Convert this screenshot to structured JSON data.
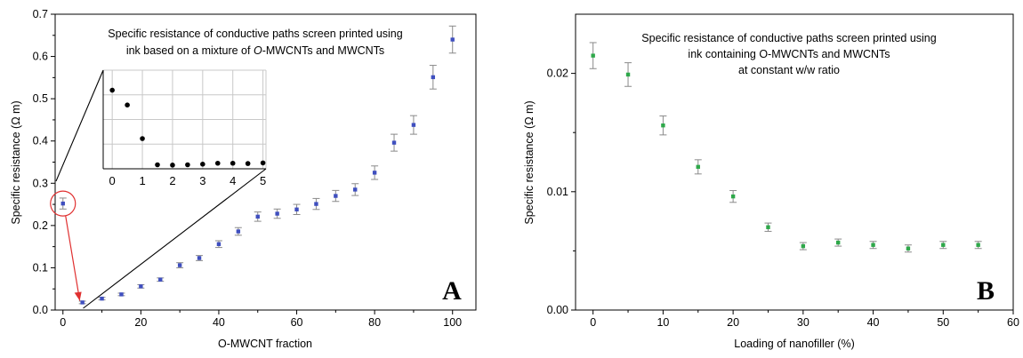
{
  "chart_data": [
    {
      "panel": "A",
      "type": "scatter",
      "title_line1": "Specific resistance of conductive paths screen printed using",
      "title_line2_prefix": "ink based on a mixture of ",
      "title_line2_italic": "O",
      "title_line2_suffix": "-MWCNTs and MWCNTs",
      "xlabel": "O-MWCNT fraction",
      "ylabel": "Specific resistance (Ω m)",
      "xlim": [
        -2,
        106
      ],
      "ylim": [
        0,
        0.7
      ],
      "xticks": [
        0,
        20,
        40,
        60,
        80,
        100
      ],
      "xtick_labels": [
        "0",
        "20",
        "40",
        "60",
        "80",
        "100"
      ],
      "yticks": [
        0.0,
        0.1,
        0.2,
        0.3,
        0.4,
        0.5,
        0.6,
        0.7
      ],
      "ytick_labels": [
        "0.0",
        "0.1",
        "0.2",
        "0.3",
        "0.4",
        "0.5",
        "0.6",
        "0.7"
      ],
      "series_color": "#3f4fbf",
      "points": [
        {
          "x": 0,
          "y": 0.252,
          "err": 0.013
        },
        {
          "x": 5,
          "y": 0.018,
          "err": 0.003
        },
        {
          "x": 10,
          "y": 0.027,
          "err": 0.003
        },
        {
          "x": 15,
          "y": 0.037,
          "err": 0.003
        },
        {
          "x": 20,
          "y": 0.056,
          "err": 0.004
        },
        {
          "x": 25,
          "y": 0.072,
          "err": 0.004
        },
        {
          "x": 30,
          "y": 0.106,
          "err": 0.006
        },
        {
          "x": 35,
          "y": 0.123,
          "err": 0.006
        },
        {
          "x": 40,
          "y": 0.156,
          "err": 0.008
        },
        {
          "x": 45,
          "y": 0.186,
          "err": 0.009
        },
        {
          "x": 50,
          "y": 0.221,
          "err": 0.011
        },
        {
          "x": 55,
          "y": 0.228,
          "err": 0.011
        },
        {
          "x": 60,
          "y": 0.238,
          "err": 0.012
        },
        {
          "x": 65,
          "y": 0.251,
          "err": 0.013
        },
        {
          "x": 70,
          "y": 0.27,
          "err": 0.013
        },
        {
          "x": 75,
          "y": 0.285,
          "err": 0.014
        },
        {
          "x": 80,
          "y": 0.325,
          "err": 0.016
        },
        {
          "x": 85,
          "y": 0.396,
          "err": 0.02
        },
        {
          "x": 90,
          "y": 0.438,
          "err": 0.022
        },
        {
          "x": 95,
          "y": 0.551,
          "err": 0.028
        },
        {
          "x": 100,
          "y": 0.64,
          "err": 0.032
        }
      ],
      "highlight": {
        "x": 0,
        "y": 0.252,
        "color": "#e03030"
      },
      "inset": {
        "xlim": [
          -0.3,
          5.1
        ],
        "ylim": [
          0,
          0.32
        ],
        "xticks": [
          0,
          1,
          2,
          3,
          4,
          5
        ],
        "xtick_labels": [
          "0",
          "1",
          "2",
          "3",
          "4",
          "5"
        ],
        "grid": true,
        "points": [
          {
            "x": 0,
            "y": 0.255
          },
          {
            "x": 0.5,
            "y": 0.207
          },
          {
            "x": 1,
            "y": 0.098
          },
          {
            "x": 1.5,
            "y": 0.013
          },
          {
            "x": 2,
            "y": 0.012
          },
          {
            "x": 2.5,
            "y": 0.013
          },
          {
            "x": 3,
            "y": 0.015
          },
          {
            "x": 3.5,
            "y": 0.018
          },
          {
            "x": 4,
            "y": 0.018
          },
          {
            "x": 4.5,
            "y": 0.017
          },
          {
            "x": 5,
            "y": 0.019
          }
        ]
      },
      "panel_label": "A"
    },
    {
      "panel": "B",
      "type": "scatter",
      "title_lines": [
        "Specific resistance of conductive paths screen printed using",
        "ink containing O-MWCNTs and MWCNTs",
        "at constant w/w ratio"
      ],
      "xlabel": "Loading of nanofiller (%)",
      "ylabel": "Specific resistance (Ω m)",
      "xlim": [
        -2.5,
        60
      ],
      "ylim": [
        0,
        0.025
      ],
      "xticks": [
        0,
        10,
        20,
        30,
        40,
        50,
        60
      ],
      "xtick_labels": [
        "0",
        "10",
        "20",
        "30",
        "40",
        "50",
        "60"
      ],
      "yticks": [
        0.0,
        0.01,
        0.02
      ],
      "ytick_labels": [
        "0.00",
        "0.01",
        "0.02"
      ],
      "series_color": "#2ea84a",
      "points": [
        {
          "x": 0,
          "y": 0.0215,
          "err": 0.0011
        },
        {
          "x": 5,
          "y": 0.0199,
          "err": 0.001
        },
        {
          "x": 10,
          "y": 0.0156,
          "err": 0.0008
        },
        {
          "x": 15,
          "y": 0.0121,
          "err": 0.0006
        },
        {
          "x": 20,
          "y": 0.0096,
          "err": 0.0005
        },
        {
          "x": 25,
          "y": 0.007,
          "err": 0.00035
        },
        {
          "x": 30,
          "y": 0.0054,
          "err": 0.0003
        },
        {
          "x": 35,
          "y": 0.0057,
          "err": 0.0003
        },
        {
          "x": 40,
          "y": 0.0055,
          "err": 0.0003
        },
        {
          "x": 45,
          "y": 0.0052,
          "err": 0.0003
        },
        {
          "x": 50,
          "y": 0.0055,
          "err": 0.0003
        },
        {
          "x": 55,
          "y": 0.0055,
          "err": 0.0003
        }
      ],
      "panel_label": "B"
    }
  ]
}
